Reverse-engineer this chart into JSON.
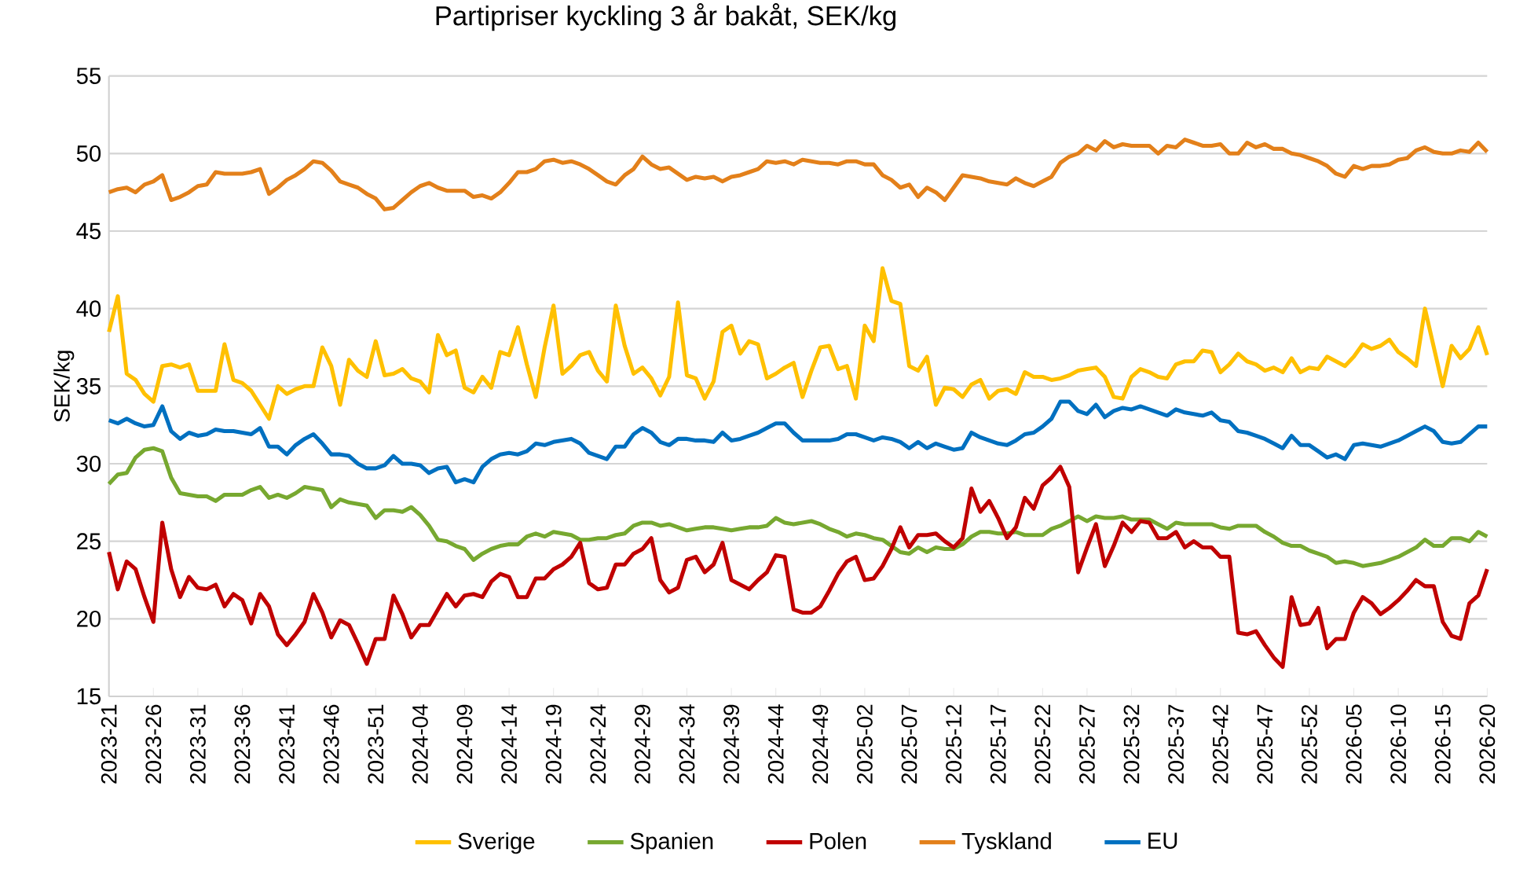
{
  "chart_data": {
    "type": "line",
    "title": "Partipriser kyckling 3 år bakåt, SEK/kg",
    "ylabel": "SEK/kg",
    "categories": [
      "2023-21",
      null,
      null,
      null,
      null,
      "2023-26",
      null,
      null,
      null,
      null,
      "2023-31",
      null,
      null,
      null,
      null,
      "2023-36",
      null,
      null,
      null,
      null,
      "2023-41",
      null,
      null,
      null,
      null,
      "2023-46",
      null,
      null,
      null,
      null,
      "2023-51",
      null,
      null,
      null,
      null,
      "2024-04",
      null,
      null,
      null,
      null,
      "2024-09",
      null,
      null,
      null,
      null,
      "2024-14",
      null,
      null,
      null,
      null,
      "2024-19",
      null,
      null,
      null,
      null,
      "2024-24",
      null,
      null,
      null,
      null,
      "2024-29",
      null,
      null,
      null,
      null,
      "2024-34",
      null,
      null,
      null,
      null,
      "2024-39",
      null,
      null,
      null,
      null,
      "2024-44",
      null,
      null,
      null,
      null,
      "2024-49",
      null,
      null,
      null,
      null,
      "2025-02",
      null,
      null,
      null,
      null,
      "2025-07",
      null,
      null,
      null,
      null,
      "2025-12",
      null,
      null,
      null,
      null,
      "2025-17",
      null,
      null,
      null,
      null,
      "2025-22",
      null,
      null,
      null,
      null,
      "2025-27",
      null,
      null,
      null,
      null,
      "2025-32",
      null,
      null,
      null,
      null,
      "2025-37",
      null,
      null,
      null,
      null,
      "2025-42",
      null,
      null,
      null,
      null,
      "2025-47",
      null,
      null,
      null,
      null,
      "2025-52",
      null,
      null,
      null,
      null,
      "2026-05",
      null,
      null,
      null,
      null,
      "2026-10",
      null,
      null,
      null,
      null,
      "2026-15",
      null,
      null,
      null,
      null,
      "2026-20"
    ],
    "series": [
      {
        "name": "Sverige",
        "color": "#ffc000",
        "values": [
          38.5,
          40.8,
          35.8,
          35.4,
          34.5,
          34.0,
          36.3,
          36.4,
          36.2,
          36.4,
          34.7,
          34.7,
          34.7,
          37.7,
          35.4,
          35.2,
          34.7,
          33.8,
          32.9,
          35.0,
          34.5,
          34.8,
          35.0,
          35.0,
          37.5,
          36.3,
          33.8,
          36.7,
          36.0,
          35.6,
          37.9,
          35.7,
          35.8,
          36.1,
          35.5,
          35.3,
          34.6,
          38.3,
          37.0,
          37.3,
          34.9,
          34.6,
          35.6,
          34.9,
          37.2,
          37.0,
          38.8,
          36.4,
          34.3,
          37.5,
          40.2,
          35.8,
          36.3,
          37.0,
          37.2,
          36.0,
          35.3,
          40.2,
          37.6,
          35.8,
          36.2,
          35.5,
          34.4,
          35.6,
          40.4,
          35.7,
          35.5,
          34.2,
          35.3,
          38.5,
          38.9,
          37.1,
          37.9,
          37.7,
          35.5,
          35.8,
          36.2,
          36.5,
          34.3,
          36.0,
          37.5,
          37.6,
          36.1,
          36.3,
          34.2,
          38.9,
          37.9,
          42.6,
          40.5,
          40.3,
          36.3,
          36.0,
          36.9,
          33.8,
          34.9,
          34.8,
          34.3,
          35.1,
          35.4,
          34.2,
          34.7,
          34.8,
          34.5,
          35.9,
          35.6,
          35.6,
          35.4,
          35.5,
          35.7,
          36.0,
          36.1,
          36.2,
          35.6,
          34.3,
          34.2,
          35.6,
          36.1,
          35.9,
          35.6,
          35.5,
          36.4,
          36.6,
          36.6,
          37.3,
          37.2,
          35.9,
          36.4,
          37.1,
          36.6,
          36.4,
          36.0,
          36.2,
          35.9,
          36.8,
          35.9,
          36.2,
          36.1,
          36.9,
          36.6,
          36.3,
          36.9,
          37.7,
          37.4,
          37.6,
          38.0,
          37.2,
          36.8,
          36.3,
          40.0,
          37.5,
          35.0,
          37.6,
          36.8,
          37.4,
          38.8,
          37.0
        ]
      },
      {
        "name": "Spanien",
        "color": "#77a830",
        "values": [
          28.7,
          29.3,
          29.4,
          30.4,
          30.9,
          31.0,
          30.8,
          29.1,
          28.1,
          28.0,
          27.9,
          27.9,
          27.6,
          28.0,
          28.0,
          28.0,
          28.3,
          28.5,
          27.8,
          28.0,
          27.8,
          28.1,
          28.5,
          28.4,
          28.3,
          27.2,
          27.7,
          27.5,
          27.4,
          27.3,
          26.5,
          27.0,
          27.0,
          26.9,
          27.2,
          26.7,
          26.0,
          25.1,
          25.0,
          24.7,
          24.5,
          23.8,
          24.2,
          24.5,
          24.7,
          24.8,
          24.8,
          25.3,
          25.5,
          25.3,
          25.6,
          25.5,
          25.4,
          25.1,
          25.1,
          25.2,
          25.2,
          25.4,
          25.5,
          26.0,
          26.2,
          26.2,
          26.0,
          26.1,
          25.9,
          25.7,
          25.8,
          25.9,
          25.9,
          25.8,
          25.7,
          25.8,
          25.9,
          25.9,
          26.0,
          26.5,
          26.2,
          26.1,
          26.2,
          26.3,
          26.1,
          25.8,
          25.6,
          25.3,
          25.5,
          25.4,
          25.2,
          25.1,
          24.7,
          24.3,
          24.2,
          24.6,
          24.3,
          24.6,
          24.5,
          24.5,
          24.8,
          25.3,
          25.6,
          25.6,
          25.5,
          25.5,
          25.6,
          25.4,
          25.4,
          25.4,
          25.8,
          26.0,
          26.3,
          26.6,
          26.3,
          26.6,
          26.5,
          26.5,
          26.6,
          26.4,
          26.4,
          26.4,
          26.1,
          25.8,
          26.2,
          26.1,
          26.1,
          26.1,
          26.1,
          25.9,
          25.8,
          26.0,
          26.0,
          26.0,
          25.6,
          25.3,
          24.9,
          24.7,
          24.7,
          24.4,
          24.2,
          24.0,
          23.6,
          23.7,
          23.6,
          23.4,
          23.5,
          23.6,
          23.8,
          24.0,
          24.3,
          24.6,
          25.1,
          24.7,
          24.7,
          25.2,
          25.2,
          25.0,
          25.6,
          25.3
        ]
      },
      {
        "name": "Polen",
        "color": "#c00000",
        "values": [
          24.3,
          21.9,
          23.7,
          23.2,
          21.4,
          19.8,
          26.2,
          23.2,
          21.4,
          22.7,
          22.0,
          21.9,
          22.2,
          20.8,
          21.6,
          21.2,
          19.7,
          21.6,
          20.8,
          19.0,
          18.3,
          19.0,
          19.8,
          21.6,
          20.4,
          18.8,
          19.9,
          19.6,
          18.4,
          17.1,
          18.7,
          18.7,
          21.5,
          20.3,
          18.8,
          19.6,
          19.6,
          20.6,
          21.6,
          20.8,
          21.5,
          21.6,
          21.4,
          22.4,
          22.9,
          22.7,
          21.4,
          21.4,
          22.6,
          22.6,
          23.2,
          23.5,
          24.0,
          24.9,
          22.3,
          21.9,
          22.0,
          23.5,
          23.5,
          24.2,
          24.5,
          25.2,
          22.5,
          21.7,
          22.0,
          23.8,
          24.0,
          23.0,
          23.5,
          24.9,
          22.5,
          22.2,
          21.9,
          22.5,
          23.0,
          24.1,
          24.0,
          20.6,
          20.4,
          20.4,
          20.8,
          21.8,
          22.9,
          23.7,
          24.0,
          22.5,
          22.6,
          23.4,
          24.5,
          25.9,
          24.6,
          25.4,
          25.4,
          25.5,
          25.0,
          24.6,
          25.2,
          28.4,
          26.9,
          27.6,
          26.5,
          25.2,
          25.9,
          27.8,
          27.1,
          28.6,
          29.1,
          29.8,
          28.5,
          23.0,
          24.6,
          26.1,
          23.4,
          24.7,
          26.2,
          25.6,
          26.3,
          26.2,
          25.2,
          25.2,
          25.6,
          24.6,
          25.0,
          24.6,
          24.6,
          24.0,
          24.0,
          19.1,
          19.0,
          19.2,
          18.3,
          17.5,
          16.9,
          21.4,
          19.6,
          19.7,
          20.7,
          18.1,
          18.7,
          18.7,
          20.4,
          21.4,
          21.0,
          20.3,
          20.7,
          21.2,
          21.8,
          22.5,
          22.1,
          22.1,
          19.8,
          18.9,
          18.7,
          21.0,
          21.5,
          23.2
        ]
      },
      {
        "name": "Tyskland",
        "color": "#e3801a",
        "values": [
          47.5,
          47.7,
          47.8,
          47.5,
          48.0,
          48.2,
          48.6,
          47.0,
          47.2,
          47.5,
          47.9,
          48.0,
          48.8,
          48.7,
          48.7,
          48.7,
          48.8,
          49.0,
          47.4,
          47.8,
          48.3,
          48.6,
          49.0,
          49.5,
          49.4,
          48.9,
          48.2,
          48.0,
          47.8,
          47.4,
          47.1,
          46.4,
          46.5,
          47.0,
          47.5,
          47.9,
          48.1,
          47.8,
          47.6,
          47.6,
          47.6,
          47.2,
          47.3,
          47.1,
          47.5,
          48.1,
          48.8,
          48.8,
          49.0,
          49.5,
          49.6,
          49.4,
          49.5,
          49.3,
          49.0,
          48.6,
          48.2,
          48.0,
          48.6,
          49.0,
          49.8,
          49.3,
          49.0,
          49.1,
          48.7,
          48.3,
          48.5,
          48.4,
          48.5,
          48.2,
          48.5,
          48.6,
          48.8,
          49.0,
          49.5,
          49.4,
          49.5,
          49.3,
          49.6,
          49.5,
          49.4,
          49.4,
          49.3,
          49.5,
          49.5,
          49.3,
          49.3,
          48.6,
          48.3,
          47.8,
          48.0,
          47.2,
          47.8,
          47.5,
          47.0,
          47.8,
          48.6,
          48.5,
          48.4,
          48.2,
          48.1,
          48.0,
          48.4,
          48.1,
          47.9,
          48.2,
          48.5,
          49.4,
          49.8,
          50.0,
          50.5,
          50.2,
          50.8,
          50.4,
          50.6,
          50.5,
          50.5,
          50.5,
          50.0,
          50.5,
          50.4,
          50.9,
          50.7,
          50.5,
          50.5,
          50.6,
          50.0,
          50.0,
          50.7,
          50.4,
          50.6,
          50.3,
          50.3,
          50.0,
          49.9,
          49.7,
          49.5,
          49.2,
          48.7,
          48.5,
          49.2,
          49.0,
          49.2,
          49.2,
          49.3,
          49.6,
          49.7,
          50.2,
          50.4,
          50.1,
          50.0,
          50.0,
          50.2,
          50.1,
          50.7,
          50.1
        ]
      },
      {
        "name": "EU",
        "color": "#0070c0",
        "values": [
          32.8,
          32.6,
          32.9,
          32.6,
          32.4,
          32.5,
          33.7,
          32.1,
          31.6,
          32.0,
          31.8,
          31.9,
          32.2,
          32.1,
          32.1,
          32.0,
          31.9,
          32.3,
          31.1,
          31.1,
          30.6,
          31.2,
          31.6,
          31.9,
          31.3,
          30.6,
          30.6,
          30.5,
          30.0,
          29.7,
          29.7,
          29.9,
          30.5,
          30.0,
          30.0,
          29.9,
          29.4,
          29.7,
          29.8,
          28.8,
          29.0,
          28.8,
          29.8,
          30.3,
          30.6,
          30.7,
          30.6,
          30.8,
          31.3,
          31.2,
          31.4,
          31.5,
          31.6,
          31.3,
          30.7,
          30.5,
          30.3,
          31.1,
          31.1,
          31.9,
          32.3,
          32.0,
          31.4,
          31.2,
          31.6,
          31.6,
          31.5,
          31.5,
          31.4,
          32.0,
          31.5,
          31.6,
          31.8,
          32.0,
          32.3,
          32.6,
          32.6,
          32.0,
          31.5,
          31.5,
          31.5,
          31.5,
          31.6,
          31.9,
          31.9,
          31.7,
          31.5,
          31.7,
          31.6,
          31.4,
          31.0,
          31.4,
          31.0,
          31.3,
          31.1,
          30.9,
          31.0,
          32.0,
          31.7,
          31.5,
          31.3,
          31.2,
          31.5,
          31.9,
          32.0,
          32.4,
          32.9,
          34.0,
          34.0,
          33.4,
          33.2,
          33.8,
          33.0,
          33.4,
          33.6,
          33.5,
          33.7,
          33.5,
          33.3,
          33.1,
          33.5,
          33.3,
          33.2,
          33.1,
          33.3,
          32.8,
          32.7,
          32.1,
          32.0,
          31.8,
          31.6,
          31.3,
          31.0,
          31.8,
          31.2,
          31.2,
          30.8,
          30.4,
          30.6,
          30.3,
          31.2,
          31.3,
          31.2,
          31.1,
          31.3,
          31.5,
          31.8,
          32.1,
          32.4,
          32.1,
          31.4,
          31.3,
          31.4,
          31.9,
          32.4,
          32.4
        ]
      }
    ],
    "ylim": [
      15,
      55
    ],
    "yticks": [
      15,
      20,
      25,
      30,
      35,
      40,
      45,
      50,
      55
    ],
    "grid": "y",
    "legend": "bottom",
    "marker": "none",
    "line_style": "solid"
  }
}
